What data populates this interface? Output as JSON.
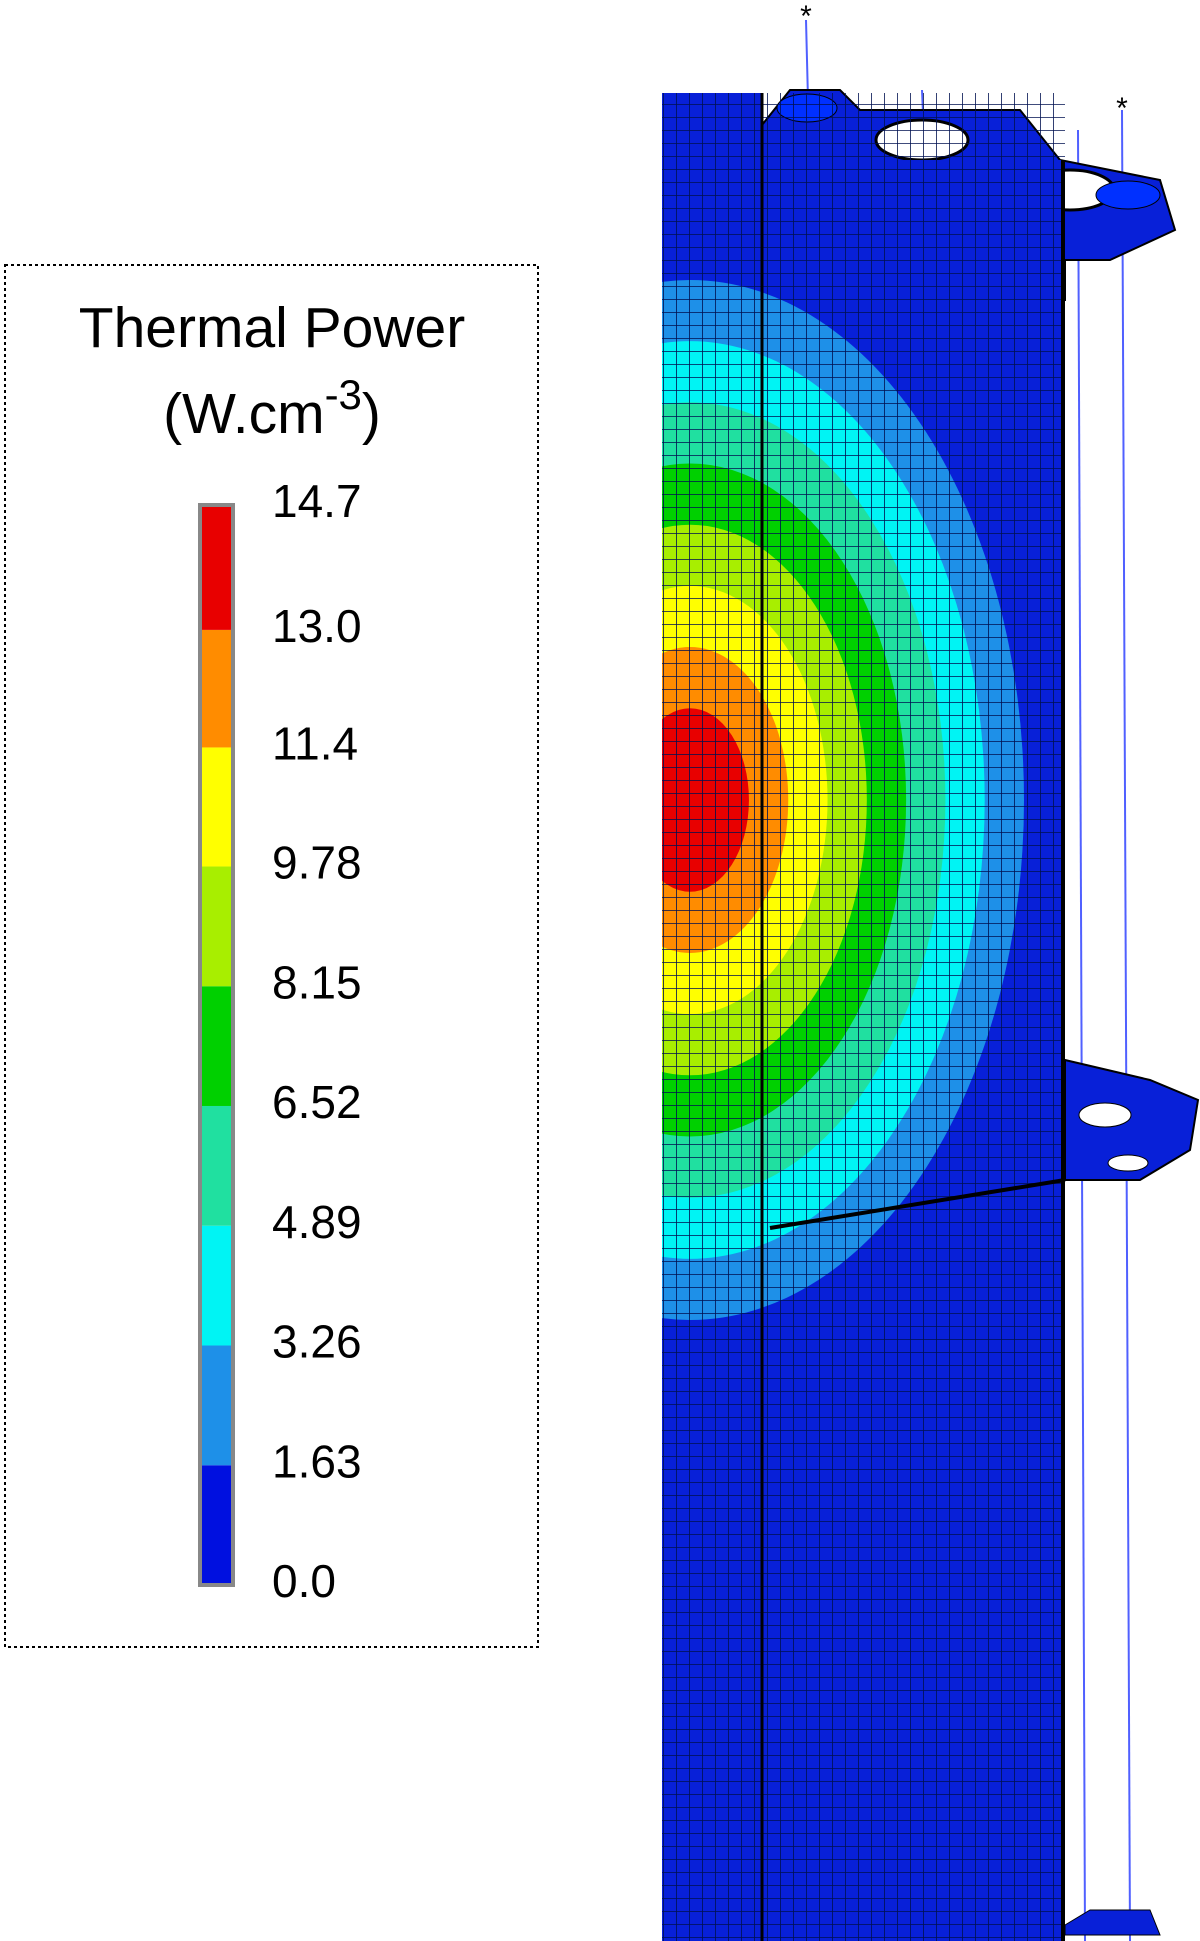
{
  "chart_data": {
    "type": "colorbar",
    "title": "Thermal Power",
    "unit": [
      "(W.cm",
      "-3",
      ")"
    ],
    "ylim": [
      0,
      14.7
    ],
    "yticks": [
      {
        "value": 0,
        "label": "0.0"
      },
      1.63,
      3.26,
      4.89,
      6.52,
      8.15,
      9.78,
      11.4,
      {
        "value": 13,
        "label": "13.0"
      },
      14.7
    ],
    "colors": [
      "#0010e0",
      "#1e90e8",
      "#00f4f4",
      "#20e0a0",
      "#00d000",
      "#a8ee00",
      "#ffff00",
      "#ff8c00",
      "#e80000"
    ]
  }
}
